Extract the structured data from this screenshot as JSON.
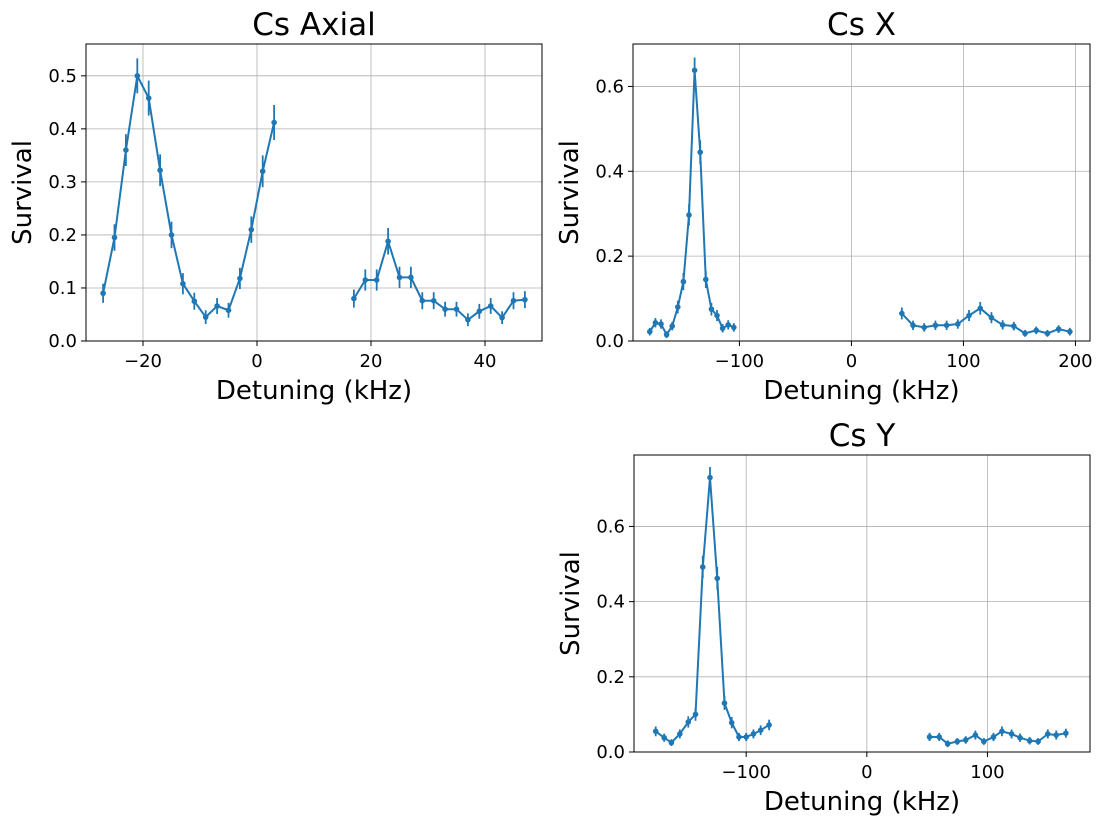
{
  "chart_data": [
    {
      "type": "line",
      "title": "Cs Axial",
      "xlabel": "Detuning (kHz)",
      "ylabel": "Survival",
      "xlim": [
        -30,
        50
      ],
      "ylim": [
        0,
        0.56
      ],
      "xticks": [
        -20,
        0,
        20,
        40
      ],
      "yticks": [
        0.0,
        0.1,
        0.2,
        0.3,
        0.4,
        0.5
      ],
      "xtick_labels": [
        "−20",
        "0",
        "20",
        "40"
      ],
      "ytick_labels": [
        "0.0",
        "0.1",
        "0.2",
        "0.3",
        "0.4",
        "0.5"
      ],
      "grid": true,
      "color": "#1f77b4",
      "segments": [
        [
          {
            "x": -27,
            "y": 0.09,
            "err": 0.018
          },
          {
            "x": -25,
            "y": 0.195,
            "err": 0.025
          },
          {
            "x": -23,
            "y": 0.36,
            "err": 0.03
          },
          {
            "x": -21,
            "y": 0.5,
            "err": 0.033
          },
          {
            "x": -19,
            "y": 0.458,
            "err": 0.033
          },
          {
            "x": -17,
            "y": 0.322,
            "err": 0.03
          },
          {
            "x": -15,
            "y": 0.2,
            "err": 0.025
          },
          {
            "x": -13,
            "y": 0.108,
            "err": 0.02
          },
          {
            "x": -11,
            "y": 0.075,
            "err": 0.016
          },
          {
            "x": -9,
            "y": 0.045,
            "err": 0.013
          },
          {
            "x": -7,
            "y": 0.066,
            "err": 0.015
          },
          {
            "x": -5,
            "y": 0.058,
            "err": 0.014
          },
          {
            "x": -3,
            "y": 0.118,
            "err": 0.02
          },
          {
            "x": -1,
            "y": 0.21,
            "err": 0.025
          },
          {
            "x": 1,
            "y": 0.32,
            "err": 0.03
          },
          {
            "x": 3,
            "y": 0.412,
            "err": 0.033
          }
        ],
        [
          {
            "x": 17,
            "y": 0.08,
            "err": 0.017
          },
          {
            "x": 19,
            "y": 0.115,
            "err": 0.02
          },
          {
            "x": 21,
            "y": 0.115,
            "err": 0.02
          },
          {
            "x": 23,
            "y": 0.188,
            "err": 0.025
          },
          {
            "x": 25,
            "y": 0.12,
            "err": 0.02
          },
          {
            "x": 27,
            "y": 0.12,
            "err": 0.02
          },
          {
            "x": 29,
            "y": 0.076,
            "err": 0.016
          },
          {
            "x": 31,
            "y": 0.076,
            "err": 0.016
          },
          {
            "x": 33,
            "y": 0.06,
            "err": 0.014
          },
          {
            "x": 35,
            "y": 0.06,
            "err": 0.014
          },
          {
            "x": 37,
            "y": 0.04,
            "err": 0.012
          },
          {
            "x": 39,
            "y": 0.056,
            "err": 0.014
          },
          {
            "x": 41,
            "y": 0.066,
            "err": 0.015
          },
          {
            "x": 43,
            "y": 0.044,
            "err": 0.012
          },
          {
            "x": 45,
            "y": 0.076,
            "err": 0.016
          },
          {
            "x": 47,
            "y": 0.078,
            "err": 0.016
          }
        ]
      ]
    },
    {
      "type": "line",
      "title": "Cs X",
      "xlabel": "Detuning (kHz)",
      "ylabel": "Survival",
      "xlim": [
        -195,
        213
      ],
      "ylim": [
        0,
        0.7
      ],
      "xticks": [
        -100,
        0,
        100,
        200
      ],
      "yticks": [
        0.0,
        0.2,
        0.4,
        0.6
      ],
      "xtick_labels": [
        "−100",
        "0",
        "100",
        "200"
      ],
      "ytick_labels": [
        "0.0",
        "0.2",
        "0.4",
        "0.6"
      ],
      "grid": true,
      "color": "#1f77b4",
      "segments": [
        [
          {
            "x": -180,
            "y": 0.022,
            "err": 0.009
          },
          {
            "x": -175,
            "y": 0.043,
            "err": 0.011
          },
          {
            "x": -170,
            "y": 0.04,
            "err": 0.011
          },
          {
            "x": -165,
            "y": 0.015,
            "err": 0.008
          },
          {
            "x": -160,
            "y": 0.035,
            "err": 0.01
          },
          {
            "x": -155,
            "y": 0.08,
            "err": 0.015
          },
          {
            "x": -150,
            "y": 0.14,
            "err": 0.02
          },
          {
            "x": -145,
            "y": 0.297,
            "err": 0.025
          },
          {
            "x": -140,
            "y": 0.638,
            "err": 0.03
          },
          {
            "x": -135,
            "y": 0.445,
            "err": 0.028
          },
          {
            "x": -130,
            "y": 0.145,
            "err": 0.02
          },
          {
            "x": -125,
            "y": 0.075,
            "err": 0.015
          },
          {
            "x": -120,
            "y": 0.06,
            "err": 0.013
          },
          {
            "x": -115,
            "y": 0.03,
            "err": 0.01
          },
          {
            "x": -110,
            "y": 0.038,
            "err": 0.011
          },
          {
            "x": -105,
            "y": 0.032,
            "err": 0.01
          }
        ],
        [
          {
            "x": 45,
            "y": 0.065,
            "err": 0.014
          },
          {
            "x": 55,
            "y": 0.037,
            "err": 0.011
          },
          {
            "x": 65,
            "y": 0.032,
            "err": 0.01
          },
          {
            "x": 75,
            "y": 0.037,
            "err": 0.011
          },
          {
            "x": 85,
            "y": 0.037,
            "err": 0.011
          },
          {
            "x": 95,
            "y": 0.04,
            "err": 0.011
          },
          {
            "x": 105,
            "y": 0.06,
            "err": 0.013
          },
          {
            "x": 115,
            "y": 0.077,
            "err": 0.015
          },
          {
            "x": 125,
            "y": 0.055,
            "err": 0.013
          },
          {
            "x": 135,
            "y": 0.038,
            "err": 0.011
          },
          {
            "x": 145,
            "y": 0.035,
            "err": 0.01
          },
          {
            "x": 155,
            "y": 0.018,
            "err": 0.008
          },
          {
            "x": 165,
            "y": 0.025,
            "err": 0.009
          },
          {
            "x": 175,
            "y": 0.018,
            "err": 0.008
          },
          {
            "x": 185,
            "y": 0.028,
            "err": 0.009
          },
          {
            "x": 195,
            "y": 0.022,
            "err": 0.009
          }
        ]
      ]
    },
    {
      "type": "line",
      "title": "Cs Y",
      "xlabel": "Detuning (kHz)",
      "ylabel": "Survival",
      "xlim": [
        -193,
        185
      ],
      "ylim": [
        0,
        0.79
      ],
      "xticks": [
        -100,
        0,
        100
      ],
      "yticks": [
        0.0,
        0.2,
        0.4,
        0.6
      ],
      "xtick_labels": [
        "−100",
        "0",
        "100"
      ],
      "ytick_labels": [
        "0.0",
        "0.2",
        "0.4",
        "0.6"
      ],
      "grid": true,
      "color": "#1f77b4",
      "segments": [
        [
          {
            "x": -175,
            "y": 0.055,
            "err": 0.013
          },
          {
            "x": -168,
            "y": 0.038,
            "err": 0.011
          },
          {
            "x": -162,
            "y": 0.025,
            "err": 0.009
          },
          {
            "x": -155,
            "y": 0.048,
            "err": 0.012
          },
          {
            "x": -148,
            "y": 0.08,
            "err": 0.015
          },
          {
            "x": -142,
            "y": 0.1,
            "err": 0.017
          },
          {
            "x": -136,
            "y": 0.492,
            "err": 0.03
          },
          {
            "x": -130,
            "y": 0.73,
            "err": 0.028
          },
          {
            "x": -124,
            "y": 0.462,
            "err": 0.03
          },
          {
            "x": -118,
            "y": 0.13,
            "err": 0.018
          },
          {
            "x": -112,
            "y": 0.078,
            "err": 0.015
          },
          {
            "x": -106,
            "y": 0.04,
            "err": 0.011
          },
          {
            "x": -100,
            "y": 0.04,
            "err": 0.011
          },
          {
            "x": -94,
            "y": 0.048,
            "err": 0.012
          },
          {
            "x": -88,
            "y": 0.058,
            "err": 0.013
          },
          {
            "x": -81,
            "y": 0.072,
            "err": 0.014
          }
        ],
        [
          {
            "x": 52,
            "y": 0.04,
            "err": 0.011
          },
          {
            "x": 60,
            "y": 0.04,
            "err": 0.011
          },
          {
            "x": 67,
            "y": 0.022,
            "err": 0.009
          },
          {
            "x": 75,
            "y": 0.028,
            "err": 0.009
          },
          {
            "x": 82,
            "y": 0.032,
            "err": 0.01
          },
          {
            "x": 90,
            "y": 0.045,
            "err": 0.012
          },
          {
            "x": 97,
            "y": 0.028,
            "err": 0.009
          },
          {
            "x": 105,
            "y": 0.04,
            "err": 0.011
          },
          {
            "x": 112,
            "y": 0.055,
            "err": 0.013
          },
          {
            "x": 120,
            "y": 0.048,
            "err": 0.012
          },
          {
            "x": 127,
            "y": 0.038,
            "err": 0.011
          },
          {
            "x": 135,
            "y": 0.03,
            "err": 0.01
          },
          {
            "x": 142,
            "y": 0.028,
            "err": 0.009
          },
          {
            "x": 150,
            "y": 0.048,
            "err": 0.012
          },
          {
            "x": 157,
            "y": 0.045,
            "err": 0.012
          },
          {
            "x": 165,
            "y": 0.05,
            "err": 0.012
          }
        ]
      ]
    }
  ]
}
